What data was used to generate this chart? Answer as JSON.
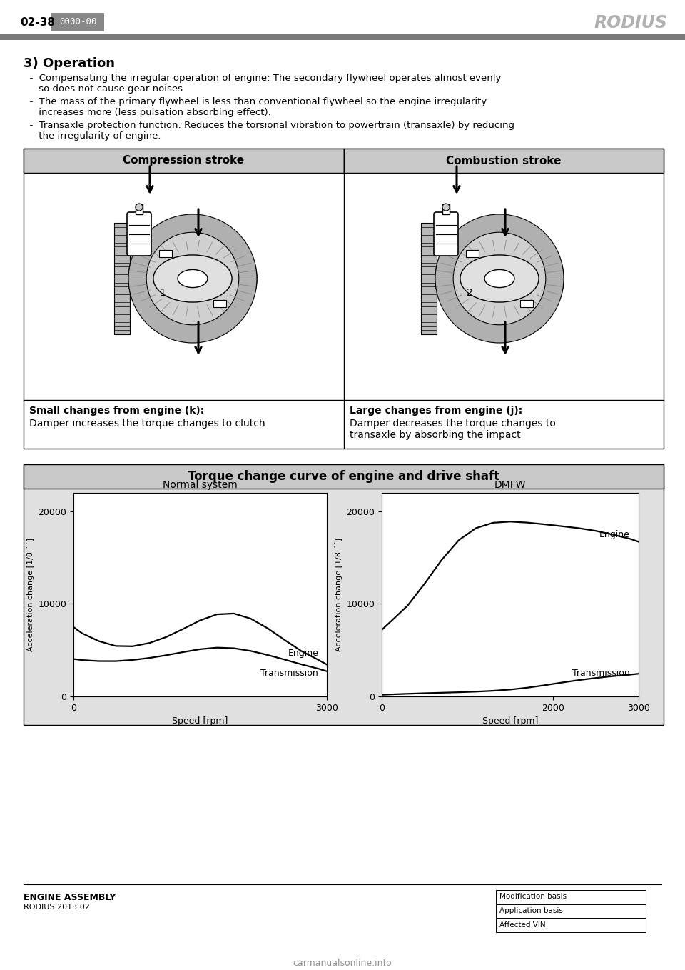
{
  "page_number": "02-38",
  "page_code": "0000-00",
  "brand": "RODIUS",
  "section_title": "3) Operation",
  "bullet1_line1": "  -  Compensating the irregular operation of engine: The secondary flywheel operates almost evenly",
  "bullet1_line2": "     so does not cause gear noises",
  "bullet2_line1": "  -  The mass of the primary flywheel is less than conventional flywheel so the engine irregularity",
  "bullet2_line2": "     increases more (less pulsation absorbing effect).",
  "bullet3_line1": "  -  Transaxle protection function: Reduces the torsional vibration to powertrain (transaxle) by reducing",
  "bullet3_line2": "     the irregularity of engine.",
  "table_header_left": "Compression stroke",
  "table_header_right": "Combustion stroke",
  "table_label1": "1",
  "table_label2": "2",
  "caption_left_bold": "Small changes from engine (k):",
  "caption_left_norm": "Damper increases the torque changes to clutch",
  "caption_right_bold": "Large changes from engine (j):",
  "caption_right_norm1": "Damper decreases the torque changes to",
  "caption_right_norm2": "transaxle by absorbing the impact",
  "chart_title": "Torque change curve of engine and drive shaft",
  "chart_left_title": "Normal system",
  "chart_right_title": "DMFW",
  "chart_ylabel": "Acceleration change [1/8 ´´]",
  "chart_xlabel": "Speed [rpm]",
  "footer_line1": "ENGINE ASSEMBLY",
  "footer_line2": "RODIUS 2013.02",
  "footer_boxes": [
    "Modification basis",
    "Application basis",
    "Affected VIN"
  ],
  "watermark": "carmanualsonline.info",
  "bg_color": "#ffffff",
  "header_bar_color": "#7a7a7a",
  "code_box_color": "#888888",
  "brand_color": "#aaaaaa",
  "table_header_bg": "#c8c8c8",
  "chart_outer_bg": "#e0e0e0",
  "chart_title_bg": "#c8c8c8"
}
